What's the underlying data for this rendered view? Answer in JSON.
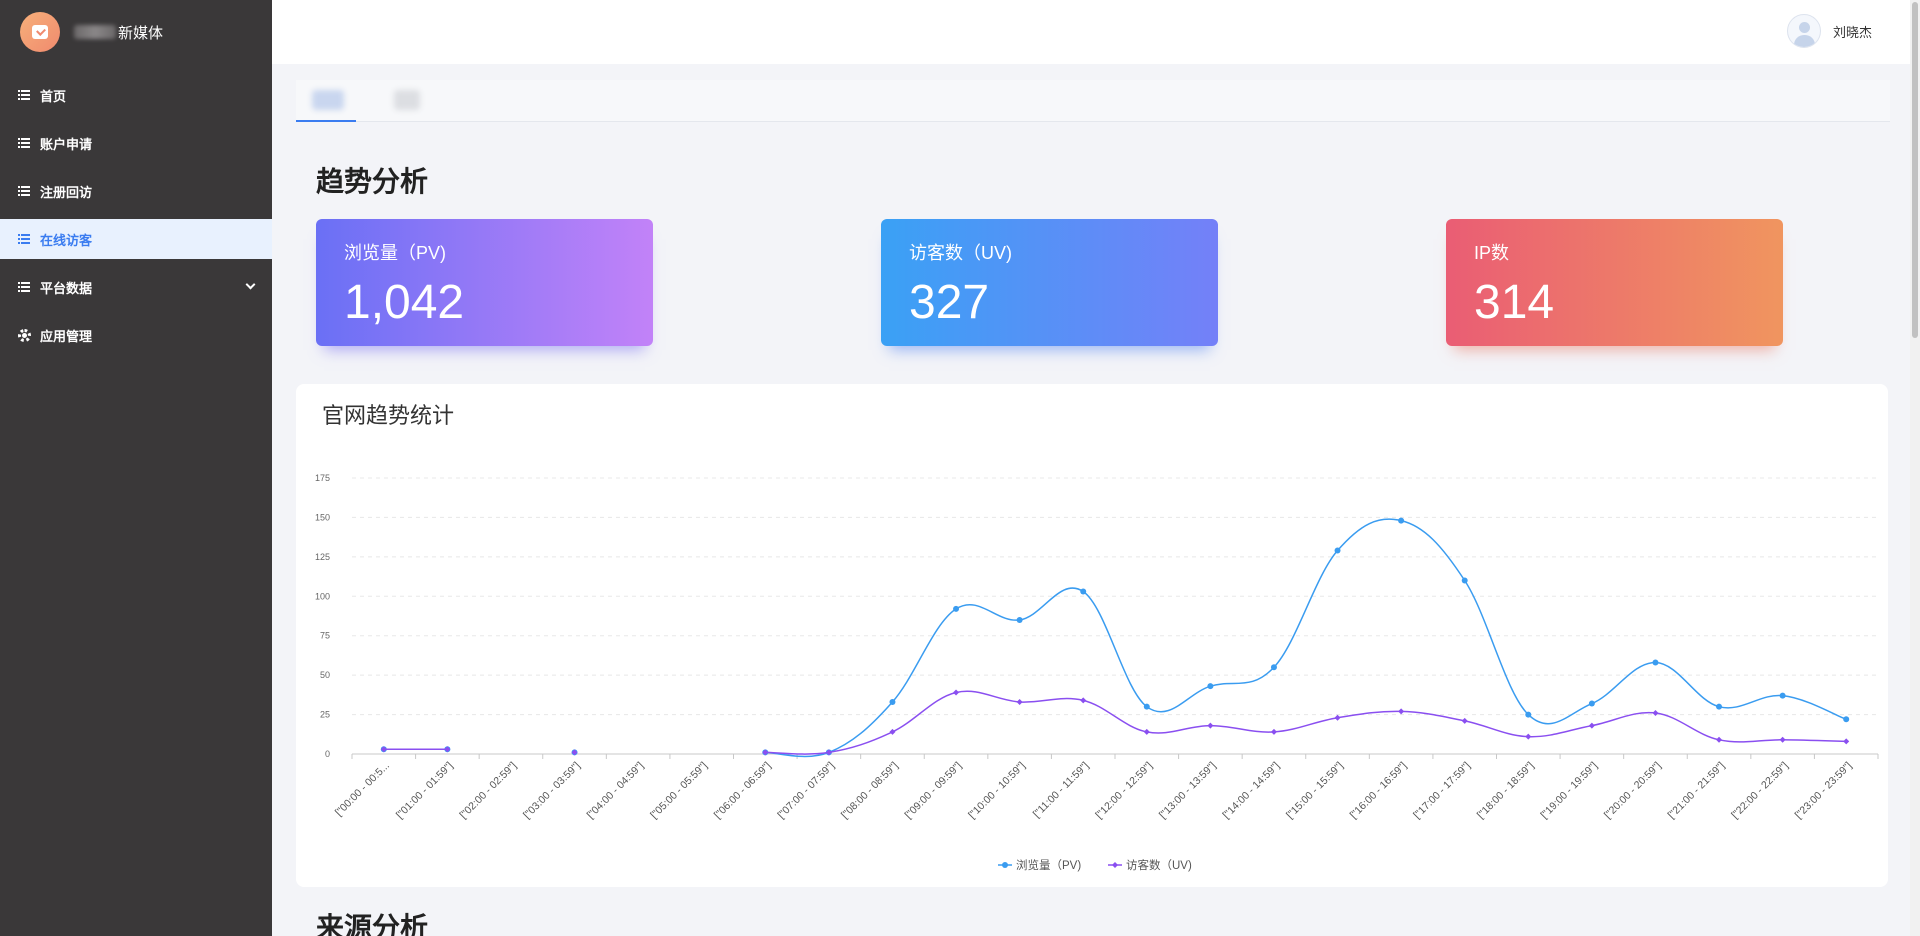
{
  "brand": {
    "name": "新媒体"
  },
  "sidebar": {
    "items": [
      {
        "label": "首页",
        "icon": "list-icon"
      },
      {
        "label": "账户申请",
        "icon": "list-icon"
      },
      {
        "label": "注册回访",
        "icon": "list-icon"
      },
      {
        "label": "在线访客",
        "icon": "list-icon",
        "active": true
      },
      {
        "label": "平台数据",
        "icon": "list-icon",
        "expandable": true
      },
      {
        "label": "应用管理",
        "icon": "gear-icon"
      }
    ]
  },
  "header": {
    "user_name": "刘晓杰"
  },
  "main": {
    "section1_title": "趋势分析",
    "section2_title": "来源分析",
    "stats": {
      "pv": {
        "label": "浏览量（PV)",
        "value": "1,042"
      },
      "uv": {
        "label": "访客数（UV)",
        "value": "327"
      },
      "ip": {
        "label": "IP数",
        "value": "314"
      }
    },
    "chart_title": "官网趋势统计"
  },
  "colors": {
    "pv": "#3a9cf0",
    "uv": "#8a4ff0",
    "accent": "#3a7cf0"
  },
  "chart_data": {
    "type": "line",
    "title": "官网趋势统计",
    "categories": [
      "[\"00:00 - 00:5...",
      "[\"01:00 - 01:59\"]",
      "[\"02:00 - 02:59\"]",
      "[\"03:00 - 03:59\"]",
      "[\"04:00 - 04:59\"]",
      "[\"05:00 - 05:59\"]",
      "[\"06:00 - 06:59\"]",
      "[\"07:00 - 07:59\"]",
      "[\"08:00 - 08:59\"]",
      "[\"09:00 - 09:59\"]",
      "[\"10:00 - 10:59\"]",
      "[\"11:00 - 11:59\"]",
      "[\"12:00 - 12:59\"]",
      "[\"13:00 - 13:59\"]",
      "[\"14:00 - 14:59\"]",
      "[\"15:00 - 15:59\"]",
      "[\"16:00 - 16:59\"]",
      "[\"17:00 - 17:59\"]",
      "[\"18:00 - 18:59\"]",
      "[\"19:00 - 19:59\"]",
      "[\"20:00 - 20:59\"]",
      "[\"21:00 - 21:59\"]",
      "[\"22:00 - 22:59\"]",
      "[\"23:00 - 23:59\"]"
    ],
    "series": [
      {
        "name": "浏览量（PV)",
        "values": [
          3,
          3,
          null,
          1,
          null,
          null,
          1,
          1,
          33,
          92,
          85,
          103,
          30,
          43,
          55,
          129,
          148,
          110,
          25,
          32,
          58,
          30,
          37,
          22
        ]
      },
      {
        "name": "访客数（UV)",
        "values": [
          3,
          3,
          null,
          1,
          null,
          null,
          1,
          1,
          14,
          39,
          33,
          34,
          14,
          18,
          14,
          23,
          27,
          21,
          11,
          18,
          26,
          9,
          9,
          8
        ]
      }
    ],
    "yticks": [
      0,
      25,
      50,
      75,
      100,
      125,
      150,
      175
    ],
    "ylim": [
      0,
      175
    ],
    "legend": "bottom-center",
    "grid": true
  }
}
